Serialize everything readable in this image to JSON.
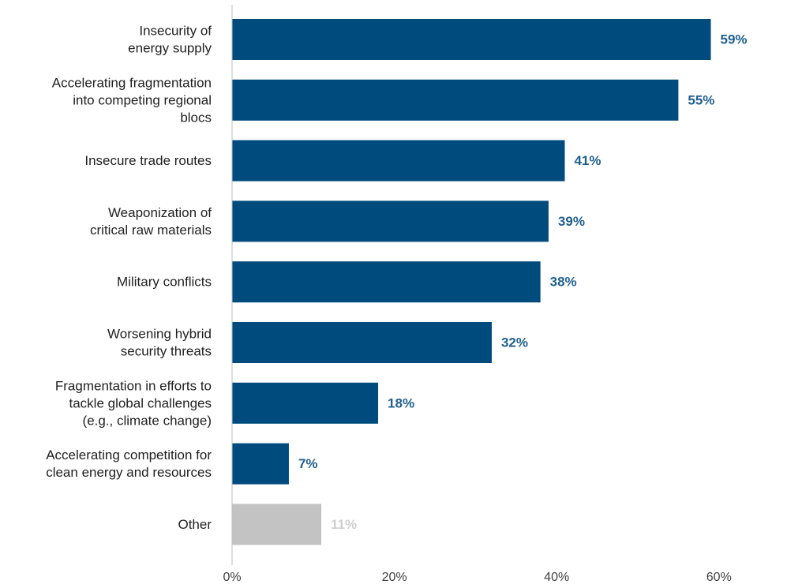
{
  "chart_data": {
    "type": "bar",
    "orientation": "horizontal",
    "title": "",
    "xlabel": "",
    "ylabel": "",
    "categories": [
      "Insecurity of energy supply",
      "Accelerating fragmentation into competing regional blocs",
      "Insecure trade routes",
      "Weaponization of critical raw materials",
      "Military conflicts",
      "Worsening hybrid security threats",
      "Fragmentation in efforts to tackle global challenges (e.g., climate change)",
      "Accelerating  competition for clean energy and resources",
      "Other"
    ],
    "category_label_lines": [
      [
        "Insecurity of",
        "energy supply"
      ],
      [
        "Accelerating fragmentation",
        "into competing regional",
        "blocs"
      ],
      [
        "Insecure trade routes"
      ],
      [
        "Weaponization of",
        "critical raw materials"
      ],
      [
        "Military conflicts"
      ],
      [
        "Worsening hybrid",
        "security threats"
      ],
      [
        "Fragmentation in efforts to",
        "tackle global challenges",
        "(e.g., climate change)"
      ],
      [
        "Accelerating  competition for",
        "clean energy and resources"
      ],
      [
        "Other"
      ]
    ],
    "values": [
      59,
      55,
      41,
      39,
      38,
      32,
      18,
      7,
      11
    ],
    "value_labels": [
      "59%",
      "55%",
      "41%",
      "39%",
      "38%",
      "32%",
      "18%",
      "7%",
      "11%"
    ],
    "bar_colors": [
      "#004b7d",
      "#004b7d",
      "#004b7d",
      "#004b7d",
      "#004b7d",
      "#004b7d",
      "#004b7d",
      "#004b7d",
      "#c3c3c3"
    ],
    "value_label_colors": [
      "#1f5f8f",
      "#1f5f8f",
      "#1f5f8f",
      "#1f5f8f",
      "#1f5f8f",
      "#1f5f8f",
      "#1f5f8f",
      "#1f5f8f",
      "#cfcfcf"
    ],
    "xlim": [
      0,
      68
    ],
    "x_ticks": [
      0,
      20,
      40,
      60
    ],
    "x_tick_labels": [
      "0%",
      "20%",
      "40%",
      "60%"
    ],
    "grid": false,
    "legend": "none"
  }
}
